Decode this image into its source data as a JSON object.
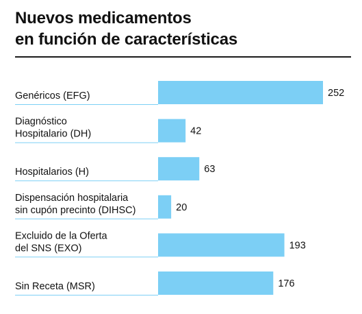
{
  "title_lines": [
    "Nuevos medicamentos",
    "en función de características"
  ],
  "colors": {
    "bar": "#7ccff5",
    "separator": "#7ccff5",
    "rule": "#1a1a1a",
    "text": "#111111"
  },
  "chart_data": {
    "type": "bar",
    "orientation": "horizontal",
    "title": "Nuevos medicamentos en función de características",
    "categories": [
      "Genéricos (EFG)",
      "Diagnóstico Hospitalario (DH)",
      "Hospitalarios (H)",
      "Dispensación hospitalaria sin cupón precinto (DIHSC)",
      "Excluido de la Oferta del SNS (EXO)",
      "Sin Receta (MSR)"
    ],
    "category_lines": [
      [
        "Genéricos (EFG)"
      ],
      [
        "Diagnóstico",
        "Hospitalario (DH)"
      ],
      [
        "Hospitalarios (H)"
      ],
      [
        "Dispensación hospitalaria",
        "sin cupón precinto (DIHSC)"
      ],
      [
        "Excluido de la Oferta",
        "del SNS (EXO)"
      ],
      [
        "Sin Receta (MSR)"
      ]
    ],
    "values": [
      252,
      42,
      63,
      20,
      193,
      176
    ],
    "data_labels": [
      "252",
      "42",
      "63",
      "20",
      "193",
      "176"
    ],
    "xlim": [
      0,
      252
    ],
    "grid": false,
    "legend": "none"
  }
}
